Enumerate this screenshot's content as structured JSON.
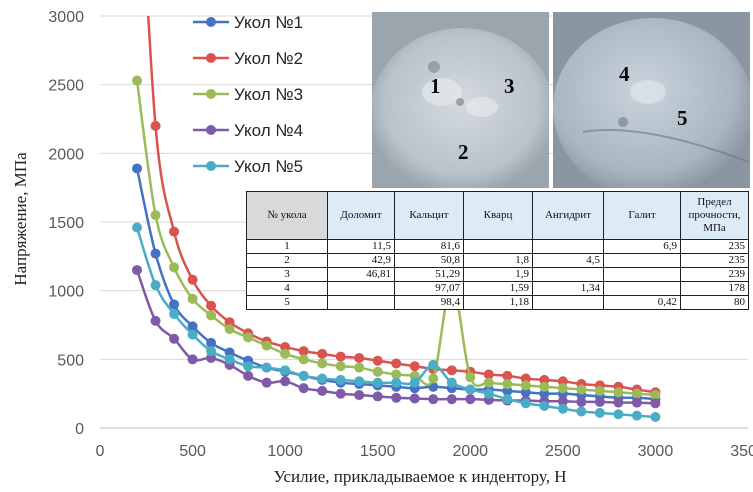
{
  "chart_data": {
    "type": "line",
    "xlabel": "Усилие, прикладываемое к индентору, Н",
    "ylabel": "Напряжение, МПа",
    "xlim": [
      0,
      3500
    ],
    "ylim": [
      0,
      3000
    ],
    "x_ticks": [
      "0",
      "500",
      "1000",
      "1500",
      "2000",
      "2500",
      "3000",
      "3500"
    ],
    "y_ticks": [
      "0",
      "500",
      "1000",
      "1500",
      "2000",
      "2500",
      "3000"
    ],
    "grid": "horizontal",
    "legend_position": "top-center",
    "x": [
      200,
      300,
      400,
      500,
      600,
      700,
      800,
      900,
      1000,
      1100,
      1200,
      1300,
      1400,
      1500,
      1600,
      1700,
      1800,
      1900,
      2000,
      2100,
      2200,
      2300,
      2400,
      2500,
      2600,
      2700,
      2800,
      2900,
      3000
    ],
    "series": [
      {
        "name": "Укол №1",
        "color": "#4472c4",
        "values": [
          1890,
          1270,
          900,
          740,
          620,
          550,
          490,
          440,
          410,
          380,
          350,
          330,
          320,
          310,
          300,
          290,
          300,
          290,
          280,
          280,
          270,
          260,
          250,
          250,
          240,
          230,
          220,
          220,
          210
        ]
      },
      {
        "name": "Укол №2",
        "color": "#d9534f",
        "values": [
          4500,
          2200,
          1430,
          1080,
          890,
          770,
          690,
          630,
          590,
          560,
          540,
          520,
          510,
          490,
          470,
          450,
          430,
          420,
          410,
          390,
          380,
          360,
          350,
          340,
          320,
          310,
          300,
          280,
          260
        ]
      },
      {
        "name": "Укол №3",
        "color": "#9bbb59",
        "values": [
          2530,
          1550,
          1170,
          940,
          820,
          720,
          660,
          600,
          540,
          500,
          470,
          450,
          440,
          410,
          390,
          380,
          360,
          1050,
          370,
          330,
          320,
          310,
          300,
          290,
          280,
          270,
          260,
          250,
          240
        ]
      },
      {
        "name": "Укол №4",
        "color": "#7e5aa8",
        "values": [
          1150,
          780,
          650,
          500,
          510,
          460,
          380,
          330,
          340,
          290,
          270,
          250,
          240,
          230,
          220,
          215,
          210,
          210,
          210,
          205,
          200,
          200,
          195,
          195,
          190,
          190,
          185,
          185,
          180
        ]
      },
      {
        "name": "Укол №5",
        "color": "#4bacc6",
        "values": [
          1460,
          1040,
          830,
          680,
          560,
          500,
          450,
          440,
          420,
          380,
          360,
          350,
          340,
          330,
          330,
          330,
          460,
          330,
          280,
          250,
          210,
          180,
          160,
          140,
          120,
          110,
          100,
          90,
          80
        ]
      }
    ]
  },
  "photos": {
    "left_labels": [
      "1",
      "3",
      "2"
    ],
    "right_labels": [
      "4",
      "5"
    ]
  },
  "table": {
    "headers": [
      "№ укола",
      "Доломит",
      "Кальцит",
      "Кварц",
      "Ангидрит",
      "Галит",
      "Предел прочности, МПа"
    ],
    "rows": [
      [
        "1",
        "11,5",
        "81,6",
        "",
        "",
        "6,9",
        "235"
      ],
      [
        "2",
        "42,9",
        "50,8",
        "1,8",
        "4,5",
        "",
        "235"
      ],
      [
        "3",
        "46,81",
        "51,29",
        "1,9",
        "",
        "",
        "239"
      ],
      [
        "4",
        "",
        "97,07",
        "1,59",
        "1,34",
        "",
        "178"
      ],
      [
        "5",
        "",
        "98,4",
        "1,18",
        "",
        "0,42",
        "80"
      ]
    ]
  }
}
